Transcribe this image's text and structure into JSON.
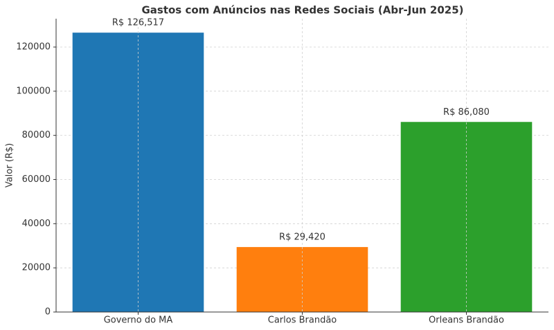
{
  "chart_data": {
    "type": "bar",
    "title": "Gastos com Anúncios nas Redes Sociais (Abr-Jun 2025)",
    "y_label": "Valor (R$)",
    "categories": [
      "Governo do MA",
      "Carlos Brandão",
      "Orleans Brandão"
    ],
    "values": [
      126517,
      29420,
      86080
    ],
    "value_labels": [
      "R$ 126,517",
      "R$ 29,420",
      "R$ 86,080"
    ],
    "colors": [
      "#1f77b4",
      "#ff7f0e",
      "#2ca02c"
    ],
    "ylim": [
      0,
      132843
    ],
    "yticks": [
      0,
      20000,
      40000,
      60000,
      80000,
      100000,
      120000
    ],
    "grid": true
  }
}
